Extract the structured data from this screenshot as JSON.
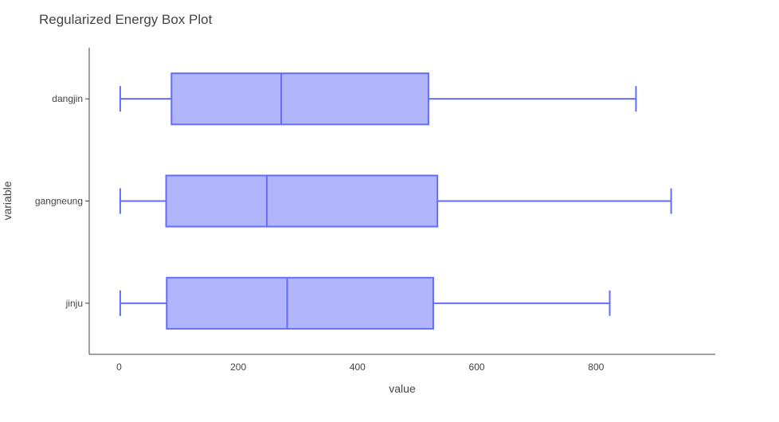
{
  "chart_data": {
    "type": "box",
    "title": "Regularized Energy Box Plot",
    "xlabel": "value",
    "ylabel": "variable",
    "xlim": [
      -50,
      1000
    ],
    "x_ticks": [
      0,
      200,
      400,
      600,
      800
    ],
    "x_tick_labels": [
      "0",
      "200",
      "400",
      "600",
      "800"
    ],
    "orientation": "horizontal",
    "grid": false,
    "legend": "none",
    "colors": {
      "box_fill": "#b0b5fc",
      "box_line": "#636efa",
      "axis": "#444444"
    },
    "categories": [
      "dangjin",
      "gangneung",
      "jinju"
    ],
    "boxes": [
      {
        "category": "dangjin",
        "min": 2,
        "q1": 88,
        "median": 272,
        "q3": 519,
        "max": 867
      },
      {
        "category": "gangneung",
        "min": 2,
        "q1": 79,
        "median": 248,
        "q3": 534,
        "max": 926
      },
      {
        "category": "jinju",
        "min": 2,
        "q1": 80,
        "median": 282,
        "q3": 527,
        "max": 823
      }
    ]
  }
}
